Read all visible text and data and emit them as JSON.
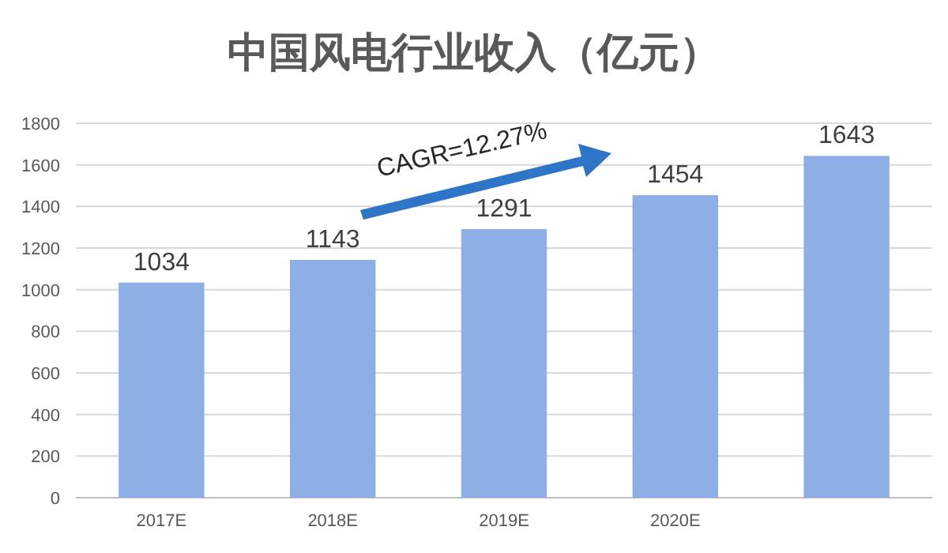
{
  "chart_data": {
    "type": "bar",
    "title": "中国风电行业收入（亿元）",
    "categories": [
      "2017E",
      "2018E",
      "2019E",
      "2020E",
      null
    ],
    "values": [
      1034,
      1143,
      1291,
      1454,
      1643
    ],
    "color": "#8eaee6",
    "ylim": [
      0,
      1800
    ],
    "yticks": [
      0,
      200,
      400,
      600,
      800,
      1000,
      1200,
      1400,
      1600,
      1800
    ],
    "grid": "y",
    "data_labels": true,
    "annotations": [
      "CAGR=12.27%"
    ]
  }
}
